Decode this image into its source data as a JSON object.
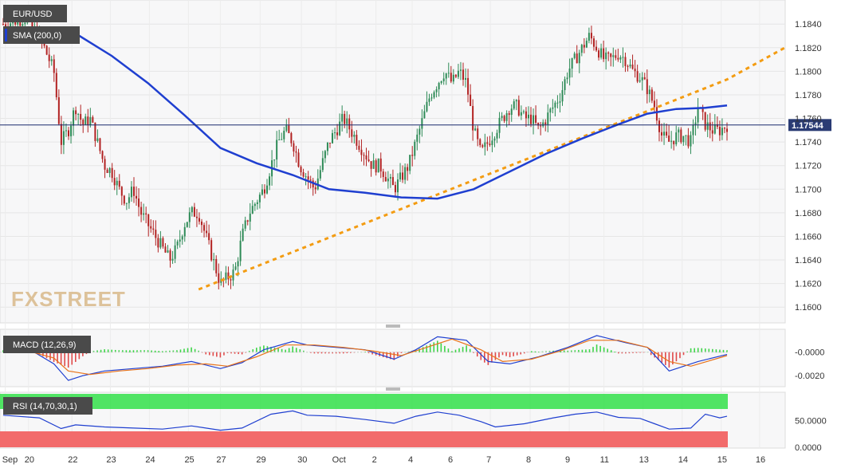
{
  "chart_data": [
    {
      "type": "candlestick",
      "symbol_label": "EUR/USD",
      "indicator_label": "SMA (200,0)",
      "watermark": "FXSTREET",
      "current_price": "1.17544",
      "ylim": [
        1.159,
        1.1855
      ],
      "y_ticks": [
        "1.1600",
        "1.1620",
        "1.1640",
        "1.1660",
        "1.1680",
        "1.1700",
        "1.1720",
        "1.1740",
        "1.1760",
        "1.1780",
        "1.1800",
        "1.1820",
        "1.1840"
      ],
      "x_ticks": [
        "Sep",
        "20",
        "22",
        "23",
        "24",
        "25",
        "27",
        "29",
        "30",
        "Oct",
        "2",
        "4",
        "6",
        "7",
        "8",
        "9",
        "11",
        "13",
        "14",
        "15",
        "16"
      ],
      "colors": {
        "up": "#2e8b57",
        "down": "#b22222",
        "sma": "#1f3fd0",
        "trendline": "#f39c12",
        "price_line": "#1a2a6c"
      },
      "price_path": [
        [
          0,
          1.184
        ],
        [
          3,
          1.1845
        ],
        [
          5,
          1.183
        ],
        [
          7,
          1.18
        ],
        [
          8,
          1.174
        ],
        [
          9,
          1.175
        ],
        [
          10,
          1.177
        ],
        [
          11,
          1.1755
        ],
        [
          12,
          1.176
        ],
        [
          13,
          1.174
        ],
        [
          14,
          1.172
        ],
        [
          15,
          1.1715
        ],
        [
          16,
          1.17
        ],
        [
          17,
          1.169
        ],
        [
          18,
          1.17
        ],
        [
          19,
          1.168
        ],
        [
          20,
          1.167
        ],
        [
          21,
          1.166
        ],
        [
          22,
          1.165
        ],
        [
          23,
          1.164
        ],
        [
          24,
          1.165
        ],
        [
          25,
          1.167
        ],
        [
          26,
          1.168
        ],
        [
          27,
          1.168
        ],
        [
          28,
          1.166
        ],
        [
          29,
          1.164
        ],
        [
          30,
          1.162
        ],
        [
          31,
          1.1625
        ],
        [
          32,
          1.163
        ],
        [
          33,
          1.166
        ],
        [
          34,
          1.168
        ],
        [
          35,
          1.169
        ],
        [
          36,
          1.17
        ],
        [
          37,
          1.172
        ],
        [
          38,
          1.174
        ],
        [
          39,
          1.175
        ],
        [
          40,
          1.174
        ],
        [
          41,
          1.172
        ],
        [
          42,
          1.171
        ],
        [
          43,
          1.17
        ],
        [
          44,
          1.172
        ],
        [
          45,
          1.174
        ],
        [
          46,
          1.175
        ],
        [
          47,
          1.176
        ],
        [
          48,
          1.175
        ],
        [
          49,
          1.174
        ],
        [
          50,
          1.173
        ],
        [
          51,
          1.172
        ],
        [
          52,
          1.172
        ],
        [
          53,
          1.171
        ],
        [
          54,
          1.17
        ],
        [
          55,
          1.171
        ],
        [
          56,
          1.172
        ],
        [
          57,
          1.174
        ],
        [
          58,
          1.176
        ],
        [
          59,
          1.178
        ],
        [
          60,
          1.179
        ],
        [
          61,
          1.18
        ],
        [
          62,
          1.179
        ],
        [
          63,
          1.18
        ],
        [
          64,
          1.179
        ],
        [
          65,
          1.175
        ],
        [
          66,
          1.173
        ],
        [
          67,
          1.174
        ],
        [
          68,
          1.175
        ],
        [
          69,
          1.176
        ],
        [
          70,
          1.177
        ],
        [
          71,
          1.177
        ],
        [
          72,
          1.176
        ],
        [
          73,
          1.176
        ],
        [
          74,
          1.175
        ],
        [
          75,
          1.176
        ],
        [
          76,
          1.177
        ],
        [
          77,
          1.178
        ],
        [
          78,
          1.18
        ],
        [
          79,
          1.181
        ],
        [
          80,
          1.182
        ],
        [
          81,
          1.183
        ],
        [
          82,
          1.182
        ],
        [
          83,
          1.181
        ],
        [
          84,
          1.181
        ],
        [
          85,
          1.1815
        ],
        [
          86,
          1.181
        ],
        [
          87,
          1.18
        ],
        [
          88,
          1.1795
        ],
        [
          89,
          1.1785
        ],
        [
          90,
          1.177
        ],
        [
          91,
          1.1745
        ],
        [
          92,
          1.174
        ],
        [
          93,
          1.1745
        ],
        [
          94,
          1.1745
        ],
        [
          95,
          1.174
        ],
        [
          96,
          1.177
        ],
        [
          97,
          1.1755
        ],
        [
          98,
          1.175
        ],
        [
          99,
          1.175
        ],
        [
          100,
          1.17544
        ]
      ],
      "sma_path": [
        [
          0,
          1.1833
        ],
        [
          5,
          1.1837
        ],
        [
          10,
          1.1832
        ],
        [
          15,
          1.1813
        ],
        [
          20,
          1.179
        ],
        [
          25,
          1.1763
        ],
        [
          30,
          1.1735
        ],
        [
          35,
          1.1722
        ],
        [
          40,
          1.1712
        ],
        [
          45,
          1.17
        ],
        [
          50,
          1.1697
        ],
        [
          55,
          1.1693
        ],
        [
          60,
          1.1692
        ],
        [
          65,
          1.17
        ],
        [
          70,
          1.1715
        ],
        [
          75,
          1.173
        ],
        [
          80,
          1.1743
        ],
        [
          85,
          1.1755
        ],
        [
          89,
          1.1764
        ],
        [
          93,
          1.1768
        ],
        [
          97,
          1.1769
        ],
        [
          100,
          1.1771
        ]
      ],
      "trendline": [
        [
          27,
          1.1615
        ],
        [
          100,
          1.1793
        ],
        [
          108,
          1.182
        ]
      ]
    },
    {
      "type": "line",
      "label": "MACD (12,26,9)",
      "ylim": [
        -0.0028,
        0.0018
      ],
      "y_ticks": [
        "-0.0000",
        "-0.0020"
      ],
      "macd": [
        [
          0,
          0.0002
        ],
        [
          4,
          0.0001
        ],
        [
          7,
          -0.001
        ],
        [
          9,
          -0.0024
        ],
        [
          11,
          -0.002
        ],
        [
          14,
          -0.0016
        ],
        [
          18,
          -0.0014
        ],
        [
          22,
          -0.0012
        ],
        [
          26,
          -0.0008
        ],
        [
          30,
          -0.0014
        ],
        [
          33,
          -0.0009
        ],
        [
          36,
          0.0002
        ],
        [
          40,
          0.0009
        ],
        [
          42,
          0.0006
        ],
        [
          46,
          0.0004
        ],
        [
          50,
          0.0002
        ],
        [
          54,
          -0.0006
        ],
        [
          57,
          0.0002
        ],
        [
          60,
          0.0013
        ],
        [
          64,
          0.001
        ],
        [
          67,
          -0.0008
        ],
        [
          70,
          -0.001
        ],
        [
          74,
          -0.0004
        ],
        [
          78,
          0.0004
        ],
        [
          82,
          0.0014
        ],
        [
          86,
          0.0008
        ],
        [
          89,
          0.0004
        ],
        [
          92,
          -0.0016
        ],
        [
          96,
          -0.0008
        ],
        [
          100,
          -0.0002
        ]
      ],
      "signal": [
        [
          0,
          0.0001
        ],
        [
          4,
          0.0
        ],
        [
          7,
          -0.0005
        ],
        [
          9,
          -0.0016
        ],
        [
          12,
          -0.0019
        ],
        [
          16,
          -0.0016
        ],
        [
          20,
          -0.0014
        ],
        [
          24,
          -0.0011
        ],
        [
          28,
          -0.001
        ],
        [
          31,
          -0.0012
        ],
        [
          35,
          -0.0004
        ],
        [
          39,
          0.0006
        ],
        [
          43,
          0.0006
        ],
        [
          47,
          0.0004
        ],
        [
          51,
          0.0001
        ],
        [
          55,
          -0.0003
        ],
        [
          58,
          0.0003
        ],
        [
          62,
          0.0011
        ],
        [
          66,
          0.0002
        ],
        [
          69,
          -0.0008
        ],
        [
          73,
          -0.0006
        ],
        [
          77,
          0.0001
        ],
        [
          81,
          0.001
        ],
        [
          85,
          0.001
        ],
        [
          89,
          0.0004
        ],
        [
          92,
          -0.0008
        ],
        [
          95,
          -0.0012
        ],
        [
          100,
          -0.0003
        ]
      ]
    },
    {
      "type": "line",
      "label": "RSI (14,70,30,1)",
      "ylim": [
        0,
        100
      ],
      "y_ticks": [
        "50.0000",
        "0.0000"
      ],
      "overbought": 70,
      "oversold": 30,
      "rsi": [
        [
          0,
          60
        ],
        [
          5,
          55
        ],
        [
          8,
          35
        ],
        [
          10,
          42
        ],
        [
          14,
          38
        ],
        [
          18,
          36
        ],
        [
          22,
          34
        ],
        [
          26,
          40
        ],
        [
          30,
          32
        ],
        [
          33,
          36
        ],
        [
          37,
          62
        ],
        [
          40,
          68
        ],
        [
          42,
          60
        ],
        [
          46,
          58
        ],
        [
          50,
          52
        ],
        [
          54,
          45
        ],
        [
          57,
          58
        ],
        [
          60,
          66
        ],
        [
          63,
          60
        ],
        [
          66,
          48
        ],
        [
          68,
          38
        ],
        [
          72,
          44
        ],
        [
          76,
          55
        ],
        [
          79,
          62
        ],
        [
          82,
          66
        ],
        [
          85,
          56
        ],
        [
          88,
          54
        ],
        [
          90,
          44
        ],
        [
          92,
          34
        ],
        [
          95,
          36
        ],
        [
          97,
          62
        ],
        [
          99,
          55
        ],
        [
          100,
          58
        ]
      ]
    }
  ]
}
